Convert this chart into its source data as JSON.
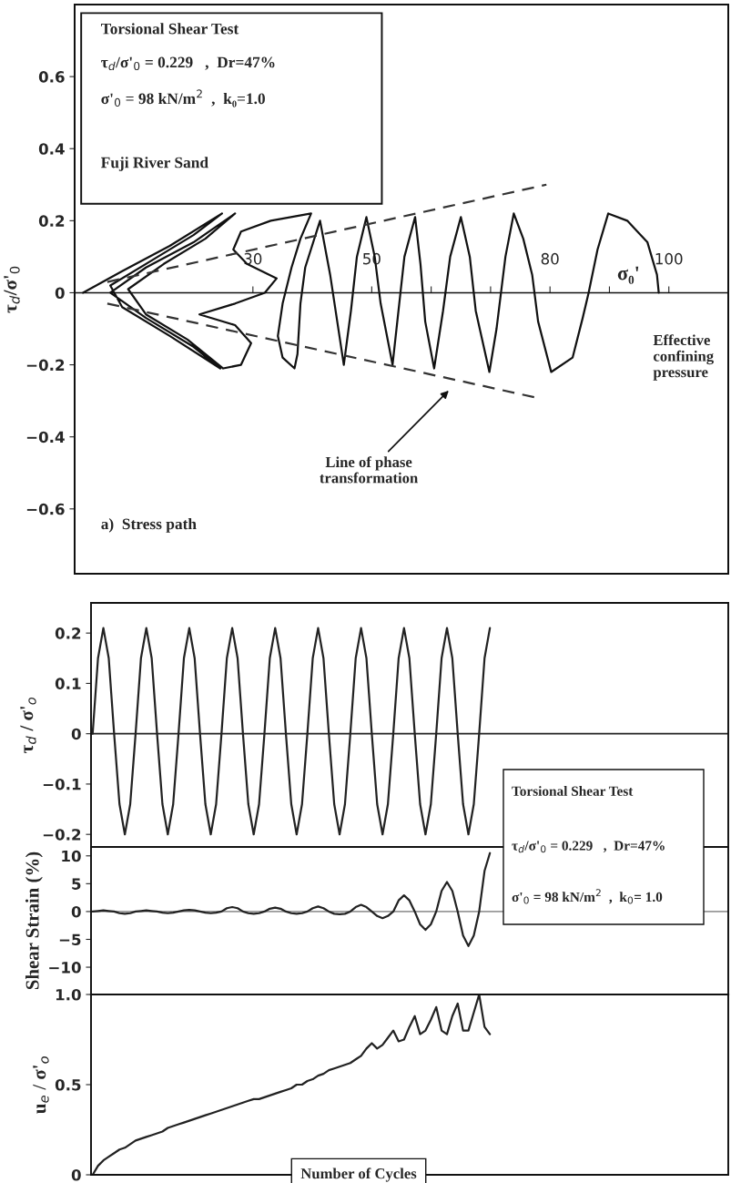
{
  "chart_data": [
    {
      "type": "line",
      "xlabel": "Effective confining pressure",
      "ylabel": "τ$_{d}$/σ'$_{0}$",
      "xlim": [
        0,
        110
      ],
      "xticks": [
        {
          "value": 30,
          "label": "30"
        },
        {
          "value": 50,
          "label": "50"
        },
        {
          "value": 60,
          "label": null
        },
        {
          "value": 70,
          "label": null
        },
        {
          "value": 80,
          "label": "80"
        },
        {
          "value": 90,
          "label": null
        },
        {
          "value": 100,
          "label": "100"
        }
      ],
      "ylim": [
        -0.78,
        0.8
      ],
      "yticks": [
        0.6,
        0.4,
        0.2,
        0,
        {
          "value": -0.2,
          "label": "−0.2"
        },
        {
          "value": -0.4,
          "label": "−0.4"
        },
        {
          "value": -0.6,
          "label": "−0.6"
        }
      ],
      "series": [
        {
          "color": "#111111",
          "x": [
            1.4,
            8,
            16,
            24.8,
            20,
            13,
            6,
            8,
            16,
            24.5,
            20,
            12,
            6,
            12,
            20,
            27,
            22,
            15,
            9,
            12,
            19,
            25,
            28,
            29.7,
            27,
            21,
            27,
            32,
            34,
            29,
            26.7,
            28,
            33,
            39.8,
            38,
            36.5,
            35,
            34.2,
            35,
            37,
            37.5,
            38,
            38.8,
            41.3,
            43,
            45.3,
            46.5,
            47.5,
            49.1,
            50.5,
            51.5,
            53.5,
            54.5,
            55.5,
            57.3,
            58.2,
            59,
            60.5,
            62,
            63.2,
            65,
            66.5,
            67.5,
            69.8,
            71,
            72.5,
            73.9,
            75.5,
            77,
            78,
            80.2,
            83.8,
            85.5,
            86.5,
            88,
            89.8,
            93,
            96.4,
            98,
            98.3
          ],
          "values": [
            0,
            0.06,
            0.13,
            0.22,
            0.16,
            0.09,
            0.02,
            -0.04,
            -0.12,
            -0.21,
            -0.15,
            -0.07,
            0,
            0.07,
            0.14,
            0.22,
            0.15,
            0.08,
            0.01,
            -0.06,
            -0.13,
            -0.21,
            -0.2,
            -0.14,
            -0.09,
            -0.06,
            -0.03,
            0,
            0.04,
            0.08,
            0.12,
            0.17,
            0.2,
            0.22,
            0.15,
            0.07,
            -0.03,
            -0.12,
            -0.18,
            -0.21,
            -0.17,
            -0.03,
            0.07,
            0.2,
            0.05,
            -0.2,
            -0.05,
            0.1,
            0.21,
            0.1,
            -0.03,
            -0.2,
            -0.05,
            0.1,
            0.21,
            0.08,
            -0.08,
            -0.21,
            -0.05,
            0.1,
            0.21,
            0.1,
            -0.05,
            -0.22,
            -0.1,
            0.1,
            0.22,
            0.15,
            0.05,
            -0.08,
            -0.22,
            -0.18,
            -0.07,
            0,
            0.12,
            0.22,
            0.2,
            0.14,
            0.05,
            0
          ]
        },
        {
          "color": "#333333",
          "line_style": "dashed",
          "x": [
            5.5,
            79.4
          ],
          "values": [
            0.03,
            0.3
          ]
        },
        {
          "color": "#333333",
          "line_style": "dashed",
          "x": [
            5.5,
            77.4
          ],
          "values": [
            -0.03,
            -0.29
          ]
        }
      ],
      "annotations": [
        "Torsional Shear Test",
        "τ$_{d}$/σ'$_{0}$ = 0.229   ,  Dr=47%",
        "σ'$_{0}$ = 98 kN/m$^{2}$  ,  k₀=1.0",
        "Fuji River Sand",
        "σ₀'",
        "Line of phase transformation",
        "a)  Stress path"
      ]
    },
    {
      "type": "line",
      "ylabel": "τ$_{d}$ / σ'$_{o}$",
      "tick_labels": "y",
      "categories": [
        null,
        null,
        null,
        null,
        null,
        null,
        null,
        null,
        null,
        null,
        null,
        null,
        null,
        null,
        null,
        null,
        null,
        null,
        null,
        null,
        null,
        null,
        null,
        null,
        null,
        null,
        null,
        null,
        null,
        null,
        null,
        null,
        null,
        null,
        null,
        null,
        null,
        null,
        null,
        null,
        null,
        null,
        null,
        null,
        null,
        null,
        null,
        null,
        null,
        null,
        null,
        null,
        null,
        null,
        null,
        null,
        null,
        null,
        null,
        null,
        null,
        null,
        null,
        null,
        null,
        null,
        null,
        null,
        null,
        null,
        null,
        null,
        null,
        null,
        null
      ],
      "ylim": [
        -0.225,
        0.26
      ],
      "yticks": [
        0.2,
        0.1,
        0,
        {
          "value": -0.1,
          "label": "−0.1"
        },
        {
          "value": -0.2,
          "label": "−0.2"
        }
      ],
      "series": [
        {
          "color": "#222222",
          "values": [
            0,
            0.15,
            0.21,
            0.15,
            0,
            -0.14,
            -0.2,
            -0.14,
            0,
            0.15,
            0.21,
            0.15,
            0,
            -0.14,
            -0.2,
            -0.14,
            0,
            0.15,
            0.21,
            0.15,
            0,
            -0.14,
            -0.2,
            -0.14,
            0,
            0.15,
            0.21,
            0.15,
            0,
            -0.14,
            -0.2,
            -0.14,
            0,
            0.15,
            0.21,
            0.15,
            0,
            -0.14,
            -0.2,
            -0.14,
            0,
            0.15,
            0.21,
            0.15,
            0,
            -0.14,
            -0.2,
            -0.14,
            0,
            0.15,
            0.21,
            0.15,
            0,
            -0.14,
            -0.2,
            -0.14,
            0,
            0.15,
            0.21,
            0.15,
            0,
            -0.14,
            -0.2,
            -0.14,
            0,
            0.15,
            0.21,
            0.15,
            0,
            -0.14,
            -0.2,
            -0.14,
            0,
            0.15,
            0.21
          ]
        }
      ],
      "ref_lines": [
        {
          "axis": "y",
          "value": 0,
          "color": "#222222"
        }
      ],
      "annotations": [
        "Torsional Shear Test",
        "τ$_{d}$/σ'$_{0}$ = 0.229   ,  Dr=47%",
        "σ'$_{0}$ = 98 kN/m$^{2}$  ,  k$_{0}$= 1.0"
      ]
    },
    {
      "type": "line",
      "ylabel": "Shear Strain (%)",
      "tick_labels": "y",
      "categories": [
        null,
        null,
        null,
        null,
        null,
        null,
        null,
        null,
        null,
        null,
        null,
        null,
        null,
        null,
        null,
        null,
        null,
        null,
        null,
        null,
        null,
        null,
        null,
        null,
        null,
        null,
        null,
        null,
        null,
        null,
        null,
        null,
        null,
        null,
        null,
        null,
        null,
        null,
        null,
        null,
        null,
        null,
        null,
        null,
        null,
        null,
        null,
        null,
        null,
        null,
        null,
        null,
        null,
        null,
        null,
        null,
        null,
        null,
        null,
        null,
        null,
        null,
        null,
        null,
        null,
        null,
        null,
        null,
        null,
        null,
        null,
        null,
        null,
        null,
        null
      ],
      "ylim": [
        -14.9,
        11.6
      ],
      "yticks": [
        10,
        5,
        0,
        {
          "value": -5,
          "label": "−5"
        },
        {
          "value": -10,
          "label": "−10"
        }
      ],
      "series": [
        {
          "color": "#222222",
          "values": [
            0,
            0.1,
            0.2,
            0.1,
            0,
            -0.3,
            -0.4,
            -0.3,
            0,
            0.1,
            0.2,
            0.1,
            0,
            -0.2,
            -0.3,
            -0.2,
            0,
            0.2,
            0.3,
            0.2,
            0,
            -0.2,
            -0.3,
            -0.2,
            0,
            0.6,
            0.8,
            0.6,
            0,
            -0.3,
            -0.4,
            -0.3,
            0,
            0.5,
            0.7,
            0.5,
            0,
            -0.3,
            -0.4,
            -0.3,
            0,
            0.6,
            0.9,
            0.6,
            0,
            -0.4,
            -0.5,
            -0.4,
            0,
            0.8,
            1.2,
            0.8,
            0,
            -0.8,
            -1.2,
            -0.8,
            0,
            2.0,
            2.9,
            2.0,
            0,
            -2.3,
            -3.3,
            -2.3,
            0,
            3.7,
            5.3,
            3.7,
            0,
            -4.3,
            -6.2,
            -4.3,
            0,
            7.3,
            10.5
          ]
        }
      ],
      "ref_lines": [
        {
          "axis": "y",
          "value": 0,
          "color": "#999999"
        }
      ]
    },
    {
      "type": "line",
      "ylabel": "u$_{e}$ / σ'$_{o}$",
      "xlabel": "Number of Cycles",
      "tick_labels": "y",
      "categories": [
        null,
        null,
        null,
        null,
        null,
        null,
        null,
        null,
        null,
        null,
        null,
        null,
        null,
        null,
        null,
        null,
        null,
        null,
        null,
        null,
        null,
        null,
        null,
        null,
        null,
        null,
        null,
        null,
        null,
        null,
        null,
        null,
        null,
        null,
        null,
        null,
        null,
        null,
        null,
        null,
        null,
        null,
        null,
        null,
        null,
        null,
        null,
        null,
        null,
        null,
        null,
        null,
        null,
        null,
        null,
        null,
        null,
        null,
        null,
        null,
        null,
        null,
        null,
        null,
        null,
        null,
        null,
        null,
        null,
        null,
        null,
        null,
        null,
        null,
        null
      ],
      "ylim": [
        0,
        1.0
      ],
      "yticks": [
        0,
        0.5,
        {
          "value": 1.0,
          "label": "1.0"
        }
      ],
      "series": [
        {
          "color": "#222222",
          "values": [
            0,
            0.05,
            0.08,
            0.1,
            0.12,
            0.14,
            0.15,
            0.17,
            0.19,
            0.2,
            0.21,
            0.22,
            0.23,
            0.24,
            0.26,
            0.27,
            0.28,
            0.29,
            0.3,
            0.31,
            0.32,
            0.33,
            0.34,
            0.35,
            0.36,
            0.37,
            0.38,
            0.39,
            0.4,
            0.41,
            0.42,
            0.42,
            0.43,
            0.44,
            0.45,
            0.46,
            0.47,
            0.48,
            0.5,
            0.5,
            0.52,
            0.53,
            0.55,
            0.56,
            0.58,
            0.59,
            0.6,
            0.61,
            0.62,
            0.64,
            0.66,
            0.7,
            0.73,
            0.7,
            0.72,
            0.76,
            0.8,
            0.74,
            0.75,
            0.82,
            0.88,
            0.78,
            0.8,
            0.86,
            0.93,
            0.8,
            0.78,
            0.88,
            0.95,
            0.8,
            0.8,
            0.9,
            1.0,
            0.82,
            0.78
          ]
        }
      ]
    }
  ]
}
